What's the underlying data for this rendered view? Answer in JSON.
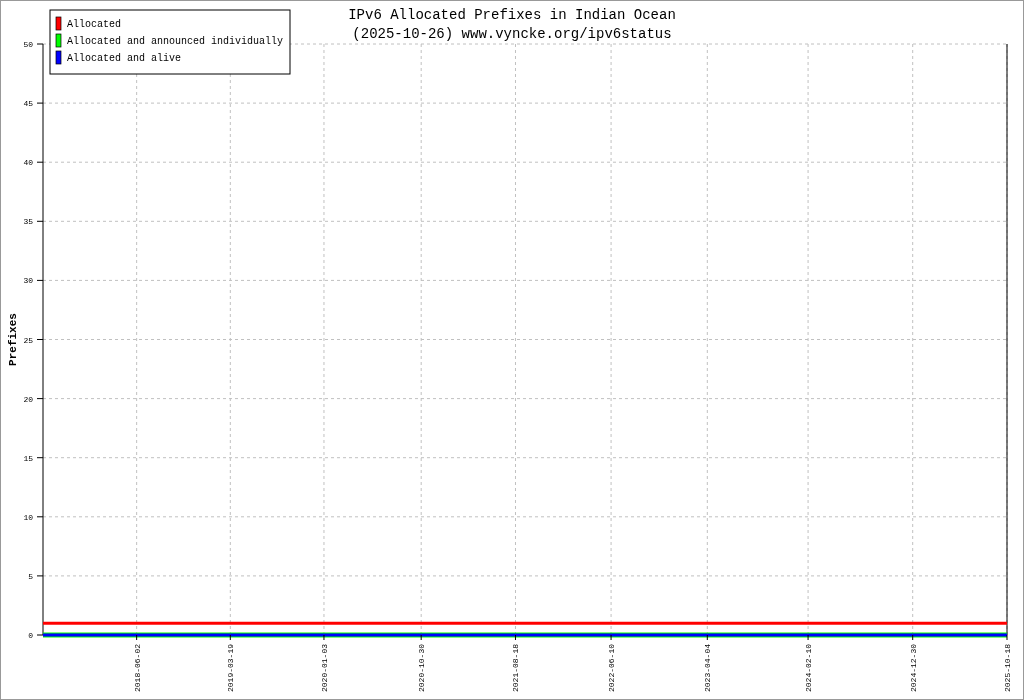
{
  "chart_data": {
    "type": "line",
    "title": "IPv6 Allocated Prefixes in Indian Ocean",
    "subtitle": "(2025-10-26) www.vyncke.org/ipv6status",
    "ylabel": "Prefixes",
    "x": [
      "2017-08-16",
      "2025-10-18"
    ],
    "series": [
      {
        "name": "Allocated",
        "color": "#ff0000",
        "values": [
          1,
          1
        ]
      },
      {
        "name": "Allocated and announced individually",
        "color": "#00ff00",
        "values": [
          0,
          0
        ]
      },
      {
        "name": "Allocated and alive",
        "color": "#0000ff",
        "values": [
          0,
          0
        ]
      }
    ],
    "xlim": [
      "2017-08-16",
      "2025-10-18"
    ],
    "xticks": [
      "2018-06-02",
      "2019-03-19",
      "2020-01-03",
      "2020-10-30",
      "2021-08-18",
      "2022-06-10",
      "2023-04-04",
      "2024-02-10",
      "2024-12-30",
      "2025-10-18"
    ],
    "ylim": [
      0,
      50
    ],
    "yticks": [
      0,
      5,
      10,
      15,
      20,
      25,
      30,
      35,
      40,
      45,
      50
    ],
    "grid": true,
    "legend": "top left",
    "marker": "none",
    "line_style": "solid"
  }
}
